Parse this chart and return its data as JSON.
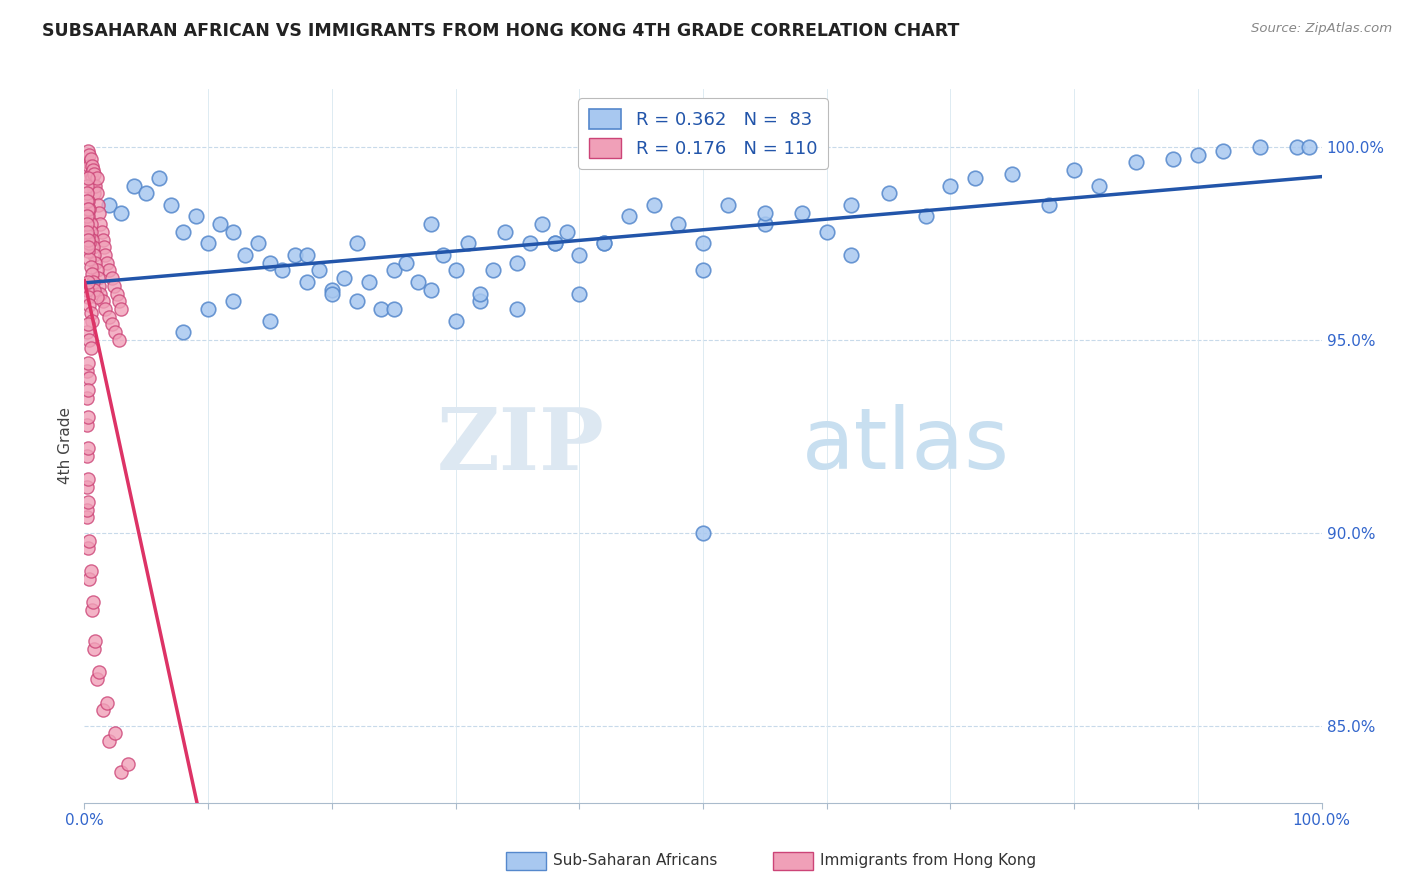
{
  "title": "SUBSAHARAN AFRICAN VS IMMIGRANTS FROM HONG KONG 4TH GRADE CORRELATION CHART",
  "source": "Source: ZipAtlas.com",
  "ylabel": "4th Grade",
  "xlim": [
    0.0,
    1.0
  ],
  "ylim": [
    0.83,
    1.015
  ],
  "yticks": [
    0.85,
    0.9,
    0.95,
    1.0
  ],
  "ytick_labels": [
    "85.0%",
    "90.0%",
    "95.0%",
    "100.0%"
  ],
  "xtick_labels": [
    "0.0%",
    "100.0%"
  ],
  "xtick_positions": [
    0.0,
    1.0
  ],
  "blue_color": "#a8c8f0",
  "blue_edge": "#5588cc",
  "pink_color": "#f0a0b8",
  "pink_edge": "#cc4477",
  "trend_blue_color": "#2255aa",
  "trend_pink_color": "#dd3366",
  "R_blue": 0.362,
  "N_blue": 83,
  "R_pink": 0.176,
  "N_pink": 110,
  "legend_label_blue": "Sub-Saharan Africans",
  "legend_label_pink": "Immigrants from Hong Kong",
  "watermark_zip": "ZIP",
  "watermark_atlas": "atlas",
  "blue_scatter_x": [
    0.02,
    0.03,
    0.04,
    0.05,
    0.06,
    0.07,
    0.08,
    0.09,
    0.1,
    0.11,
    0.12,
    0.13,
    0.14,
    0.15,
    0.16,
    0.17,
    0.18,
    0.19,
    0.2,
    0.21,
    0.22,
    0.23,
    0.24,
    0.25,
    0.26,
    0.27,
    0.28,
    0.29,
    0.3,
    0.31,
    0.32,
    0.33,
    0.34,
    0.35,
    0.36,
    0.37,
    0.38,
    0.39,
    0.4,
    0.42,
    0.44,
    0.46,
    0.48,
    0.5,
    0.52,
    0.55,
    0.58,
    0.6,
    0.62,
    0.65,
    0.68,
    0.7,
    0.72,
    0.75,
    0.78,
    0.8,
    0.82,
    0.85,
    0.88,
    0.9,
    0.92,
    0.95,
    0.98,
    0.15,
    0.2,
    0.25,
    0.3,
    0.35,
    0.4,
    0.1,
    0.08,
    0.12,
    0.18,
    0.22,
    0.28,
    0.32,
    0.38,
    0.42,
    0.5,
    0.55,
    0.62,
    0.5,
    0.99
  ],
  "blue_scatter_y": [
    0.985,
    0.983,
    0.99,
    0.988,
    0.992,
    0.985,
    0.978,
    0.982,
    0.975,
    0.98,
    0.978,
    0.972,
    0.975,
    0.97,
    0.968,
    0.972,
    0.965,
    0.968,
    0.963,
    0.966,
    0.96,
    0.965,
    0.958,
    0.968,
    0.97,
    0.965,
    0.963,
    0.972,
    0.968,
    0.975,
    0.96,
    0.968,
    0.978,
    0.97,
    0.975,
    0.98,
    0.975,
    0.978,
    0.972,
    0.975,
    0.982,
    0.985,
    0.98,
    0.975,
    0.985,
    0.98,
    0.983,
    0.978,
    0.985,
    0.988,
    0.982,
    0.99,
    0.992,
    0.993,
    0.985,
    0.994,
    0.99,
    0.996,
    0.997,
    0.998,
    0.999,
    1.0,
    1.0,
    0.955,
    0.962,
    0.958,
    0.955,
    0.958,
    0.962,
    0.958,
    0.952,
    0.96,
    0.972,
    0.975,
    0.98,
    0.962,
    0.975,
    0.975,
    0.968,
    0.983,
    0.972,
    0.9,
    1.0
  ],
  "pink_scatter_x": [
    0.002,
    0.003,
    0.003,
    0.004,
    0.004,
    0.005,
    0.005,
    0.006,
    0.006,
    0.007,
    0.007,
    0.008,
    0.008,
    0.009,
    0.01,
    0.01,
    0.011,
    0.012,
    0.013,
    0.014,
    0.015,
    0.016,
    0.017,
    0.018,
    0.02,
    0.022,
    0.024,
    0.026,
    0.028,
    0.03,
    0.002,
    0.003,
    0.003,
    0.004,
    0.005,
    0.005,
    0.006,
    0.007,
    0.008,
    0.009,
    0.01,
    0.011,
    0.012,
    0.013,
    0.015,
    0.017,
    0.02,
    0.022,
    0.025,
    0.028,
    0.002,
    0.003,
    0.003,
    0.004,
    0.004,
    0.005,
    0.006,
    0.007,
    0.008,
    0.01,
    0.002,
    0.003,
    0.003,
    0.004,
    0.005,
    0.006,
    0.002,
    0.003,
    0.004,
    0.005,
    0.002,
    0.003,
    0.004,
    0.002,
    0.003,
    0.002,
    0.003,
    0.002,
    0.003,
    0.002,
    0.003,
    0.002,
    0.002,
    0.003,
    0.003,
    0.004,
    0.004,
    0.005,
    0.006,
    0.007,
    0.008,
    0.009,
    0.01,
    0.012,
    0.015,
    0.018,
    0.02,
    0.025,
    0.03,
    0.035,
    0.002,
    0.003,
    0.002,
    0.002,
    0.003,
    0.002,
    0.002,
    0.002,
    0.003,
    0.003
  ],
  "pink_scatter_y": [
    0.997,
    0.999,
    0.996,
    0.998,
    0.995,
    0.997,
    0.993,
    0.995,
    0.992,
    0.994,
    0.99,
    0.993,
    0.988,
    0.99,
    0.992,
    0.988,
    0.985,
    0.983,
    0.98,
    0.978,
    0.976,
    0.974,
    0.972,
    0.97,
    0.968,
    0.966,
    0.964,
    0.962,
    0.96,
    0.958,
    0.984,
    0.986,
    0.982,
    0.984,
    0.98,
    0.978,
    0.976,
    0.974,
    0.972,
    0.97,
    0.968,
    0.966,
    0.964,
    0.962,
    0.96,
    0.958,
    0.956,
    0.954,
    0.952,
    0.95,
    0.975,
    0.977,
    0.973,
    0.975,
    0.971,
    0.969,
    0.967,
    0.965,
    0.963,
    0.961,
    0.963,
    0.965,
    0.961,
    0.959,
    0.957,
    0.955,
    0.952,
    0.954,
    0.95,
    0.948,
    0.942,
    0.944,
    0.94,
    0.935,
    0.937,
    0.928,
    0.93,
    0.92,
    0.922,
    0.912,
    0.914,
    0.904,
    0.906,
    0.908,
    0.896,
    0.898,
    0.888,
    0.89,
    0.88,
    0.882,
    0.87,
    0.872,
    0.862,
    0.864,
    0.854,
    0.856,
    0.846,
    0.848,
    0.838,
    0.84,
    0.99,
    0.992,
    0.988,
    0.986,
    0.984,
    0.982,
    0.98,
    0.978,
    0.976,
    0.974
  ]
}
